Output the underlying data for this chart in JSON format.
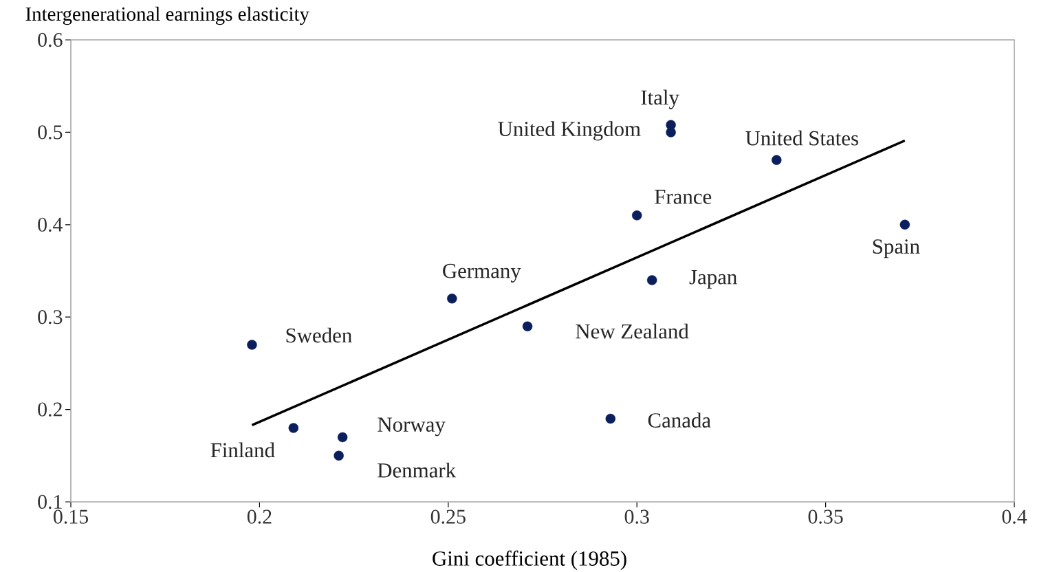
{
  "chart_data": {
    "type": "scatter",
    "xlabel": "Gini coefficient (1985)",
    "ylabel": "Intergenerational earnings elasticity",
    "xlim": [
      0.15,
      0.4
    ],
    "xticks": [
      0.15,
      0.2,
      0.25,
      0.3,
      0.35,
      0.4
    ],
    "ylim": [
      0.1,
      0.6
    ],
    "yticks": [
      0.1,
      0.2,
      0.3,
      0.4,
      0.5,
      0.6
    ],
    "marker": "circle",
    "series": [
      {
        "color": "#0a1f5c",
        "x": [
          0.198,
          0.209,
          0.222,
          0.221,
          0.251,
          0.271,
          0.293,
          0.3,
          0.304,
          0.309,
          0.309,
          0.337,
          0.371
        ],
        "values": [
          0.27,
          0.18,
          0.17,
          0.15,
          0.32,
          0.29,
          0.19,
          0.41,
          0.34,
          0.508,
          0.5,
          0.47,
          0.4
        ]
      },
      {
        "type": "line",
        "color": "#000000",
        "marker": "none",
        "line_style": "solid",
        "x": [
          0.198,
          0.371
        ],
        "values": [
          0.183,
          0.491
        ]
      }
    ],
    "annotations": [
      {
        "text": "Sweden",
        "x": 0.198,
        "y": 0.27
      },
      {
        "text": "Finland",
        "x": 0.209,
        "y": 0.18
      },
      {
        "text": "Norway",
        "x": 0.222,
        "y": 0.17
      },
      {
        "text": "Denmark",
        "x": 0.221,
        "y": 0.15
      },
      {
        "text": "Germany",
        "x": 0.251,
        "y": 0.32
      },
      {
        "text": "New Zealand",
        "x": 0.271,
        "y": 0.29
      },
      {
        "text": "Canada",
        "x": 0.293,
        "y": 0.19
      },
      {
        "text": "France",
        "x": 0.3,
        "y": 0.41
      },
      {
        "text": "Japan",
        "x": 0.304,
        "y": 0.34
      },
      {
        "text": "Italy",
        "x": 0.309,
        "y": 0.508
      },
      {
        "text": "United Kingdom",
        "x": 0.309,
        "y": 0.5
      },
      {
        "text": "United States",
        "x": 0.337,
        "y": 0.47
      },
      {
        "text": "Spain",
        "x": 0.371,
        "y": 0.4
      }
    ]
  }
}
